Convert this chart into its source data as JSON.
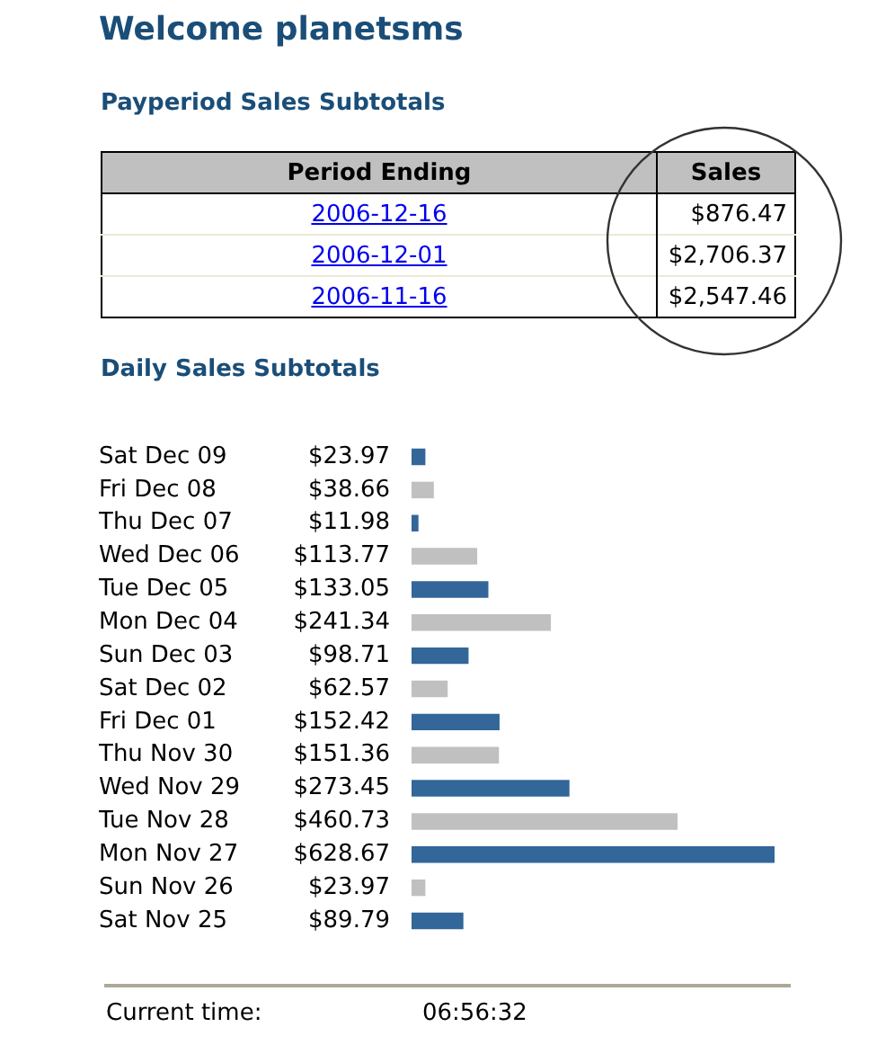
{
  "chart_data": [
    {
      "type": "other",
      "title": "Welcome planetsms",
      "subtitle": "Payperiod Sales Subtotals",
      "annotations": [
        "Period Ending",
        "Sales",
        "2006-12-16",
        "$876.47",
        "2006-12-01",
        "$2,706.37",
        "2006-11-16",
        "$2,547.46"
      ]
    },
    {
      "type": "bar",
      "orientation": "horizontal",
      "title": "Daily Sales Subtotals",
      "categories": [
        "Sat Dec 09",
        "Fri Dec 08",
        "Thu Dec 07",
        "Wed Dec 06",
        "Tue Dec 05",
        "Mon Dec 04",
        "Sun Dec 03",
        "Sat Dec 02",
        "Fri Dec 01",
        "Thu Nov 30",
        "Wed Nov 29",
        "Tue Nov 28",
        "Mon Nov 27",
        "Sun Nov 26",
        "Sat Nov 25"
      ],
      "values": [
        23.97,
        38.66,
        11.98,
        113.77,
        133.05,
        241.34,
        98.71,
        62.57,
        152.42,
        151.36,
        273.45,
        460.73,
        628.67,
        23.97,
        89.79
      ],
      "value_labels": [
        "$23.97",
        "$38.66",
        "$11.98",
        "$113.77",
        "$133.05",
        "$241.34",
        "$98.71",
        "$62.57",
        "$152.42",
        "$151.36",
        "$273.45",
        "$460.73",
        "$628.67",
        "$23.97",
        "$89.79"
      ],
      "colors": [
        "#336699",
        "#c0c0c0",
        "#336699",
        "#c0c0c0",
        "#336699",
        "#c0c0c0",
        "#336699",
        "#c0c0c0",
        "#336699",
        "#c0c0c0",
        "#336699",
        "#c0c0c0",
        "#336699",
        "#c0c0c0",
        "#336699"
      ],
      "annotations": [
        "Current time:",
        "06:56:32"
      ]
    }
  ]
}
